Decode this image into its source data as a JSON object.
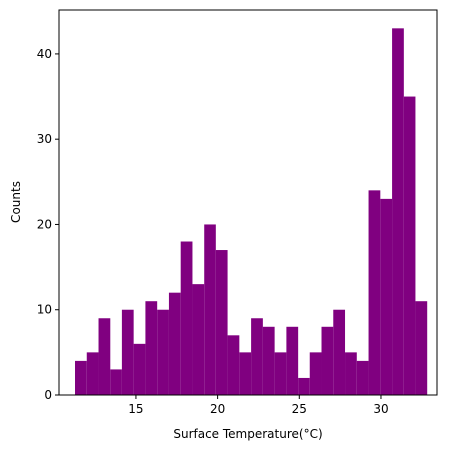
{
  "chart_data": {
    "type": "histogram",
    "xlabel": "Surface Temperature(°C)",
    "ylabel": "Counts",
    "color": "#800080",
    "bins": [
      11.27,
      11.99,
      12.71,
      13.43,
      14.14,
      14.86,
      15.58,
      16.3,
      17.02,
      17.74,
      18.46,
      19.18,
      19.89,
      20.61,
      21.33,
      22.05,
      22.77,
      23.49,
      24.21,
      24.93,
      25.64,
      26.36,
      27.08,
      27.8,
      28.52,
      29.24,
      29.96,
      30.68,
      31.4,
      32.11,
      32.83
    ],
    "counts": [
      4,
      5,
      9,
      3,
      10,
      6,
      11,
      10,
      12,
      18,
      13,
      20,
      17,
      7,
      5,
      9,
      8,
      5,
      8,
      2,
      5,
      8,
      10,
      5,
      4,
      24,
      23,
      43,
      35,
      11
    ],
    "xlim": [
      10.29,
      33.43
    ],
    "xticks": [
      15,
      20,
      25,
      30
    ],
    "ylim": [
      0,
      45.15
    ],
    "yticks": [
      0,
      10,
      20,
      30,
      40
    ]
  }
}
